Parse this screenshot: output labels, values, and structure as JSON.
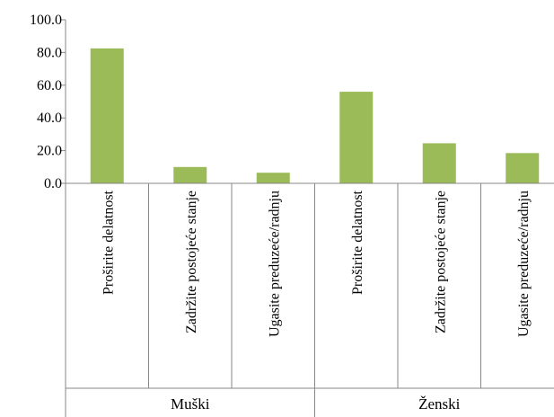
{
  "chart_data": {
    "type": "bar",
    "title": "",
    "xlabel": "",
    "ylabel": "",
    "ylim": [
      0,
      100
    ],
    "y_ticks": [
      "0.0",
      "20.0",
      "40.0",
      "60.0",
      "80.0",
      "100.0"
    ],
    "grid": false,
    "legend": "none",
    "groups": [
      {
        "name": "Muški",
        "categories": [
          "Proširite delatnost",
          "Zadržite postojeće stanje",
          "Ugasite preduzeće/radnju"
        ],
        "values": [
          82.5,
          10.0,
          6.5
        ]
      },
      {
        "name": "Ženski",
        "categories": [
          "Proširite delatnost",
          "Zadržite postojeće stanje",
          "Ugasite preduzeće/radnju"
        ],
        "values": [
          56.0,
          24.5,
          18.5
        ]
      }
    ],
    "colors": {
      "bar": "#9BBB59",
      "axis": "#878787"
    }
  }
}
